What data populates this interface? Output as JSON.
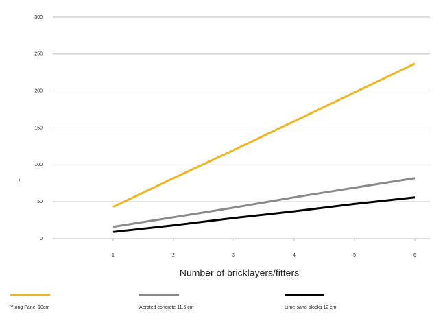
{
  "chart_data": {
    "type": "line",
    "x_label": "Number of bricklayers/fitters",
    "y_label": "/",
    "x": [
      1,
      2,
      3,
      4,
      5,
      6
    ],
    "xlim": [
      0,
      6.25
    ],
    "xticks": [
      1,
      2,
      3,
      4,
      5,
      6
    ],
    "ylim": [
      0,
      300
    ],
    "yticks": [
      0,
      50,
      100,
      150,
      200,
      250,
      300
    ],
    "grid": true,
    "series": [
      {
        "name": "Ytong Panel 10cm",
        "color": "#f0b41c",
        "values": [
          43,
          82,
          120,
          159,
          198,
          237
        ]
      },
      {
        "name": "Aerated concrete 11.5 cm",
        "color": "#8a8a8a",
        "values": [
          16,
          29,
          42,
          56,
          69,
          82
        ]
      },
      {
        "name": "Lime-sand blocks 12 cm",
        "color": "#000000",
        "values": [
          9,
          18,
          28,
          37,
          47,
          56
        ]
      }
    ]
  }
}
